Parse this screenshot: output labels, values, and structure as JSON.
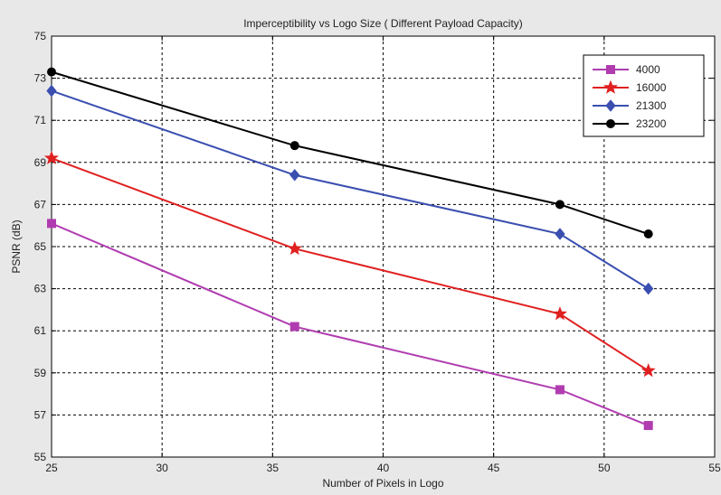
{
  "chart_data": {
    "type": "line",
    "title": "Imperceptibility vs Logo Size ( Different Payload Capacity)",
    "xlabel": "Number of Pixels in Logo",
    "ylabel": "PSNR (dB)",
    "xlim": [
      25,
      55
    ],
    "ylim": [
      55,
      75
    ],
    "xticks": [
      "25",
      "30",
      "35",
      "40",
      "45",
      "50",
      "55"
    ],
    "yticks": [
      "55",
      "57",
      "59",
      "61",
      "63",
      "65",
      "67",
      "69",
      "71",
      "73",
      "75"
    ],
    "grid": true,
    "legend_position": "top-right",
    "x": [
      25,
      36,
      48,
      52
    ],
    "series": [
      {
        "name": "4000",
        "values": [
          66.1,
          61.2,
          58.2,
          56.5
        ],
        "color": "#b03cb0",
        "marker": "square"
      },
      {
        "name": "16000",
        "values": [
          69.2,
          64.9,
          61.8,
          59.1
        ],
        "color": "#e02020",
        "marker": "star"
      },
      {
        "name": "21300",
        "values": [
          72.4,
          68.4,
          65.6,
          63.0
        ],
        "color": "#3a4fb0",
        "marker": "diamond"
      },
      {
        "name": "23200",
        "values": [
          73.3,
          69.8,
          67.0,
          65.6
        ],
        "color": "#000000",
        "marker": "circle"
      }
    ]
  }
}
